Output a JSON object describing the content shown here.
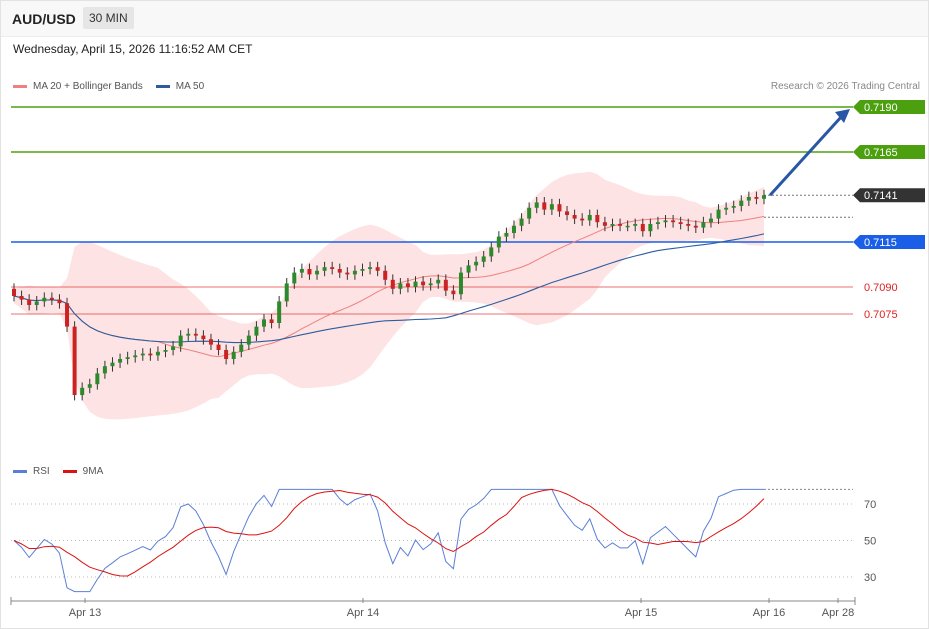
{
  "header": {
    "symbol": "AUD/USD",
    "timeframe": "30 MIN"
  },
  "datetime": "Wednesday, April 15, 2026 11:16:52 AM CET",
  "legend_price": {
    "items": [
      {
        "label": "MA 20 + Bollinger Bands",
        "color": "#f08080"
      },
      {
        "label": "MA 50",
        "color": "#2d5d9f"
      }
    ]
  },
  "credit": "Research © 2026 Trading Central",
  "legend_rsi": {
    "items": [
      {
        "label": "RSI",
        "color": "#5b7fd6"
      },
      {
        "label": "9MA",
        "color": "#dd1111"
      }
    ]
  },
  "levels": [
    {
      "value": "0.7190",
      "color": "#4ca010",
      "style": "box",
      "text_color": "#ffffff"
    },
    {
      "value": "0.7165",
      "color": "#4ca010",
      "style": "box",
      "text_color": "#ffffff"
    },
    {
      "value": "0.7141",
      "color": "#333333",
      "style": "box",
      "text_color": "#ffffff"
    },
    {
      "value": "0.7115",
      "color": "#1a5fe6",
      "style": "box",
      "text_color": "#ffffff"
    },
    {
      "value": "0.7090",
      "color": "#e04040",
      "style": "text",
      "text_color": "#dd2222"
    },
    {
      "value": "0.7075",
      "color": "#e04040",
      "style": "text",
      "text_color": "#dd2222"
    }
  ],
  "rsi_ticks": [
    "70",
    "50",
    "30"
  ],
  "x_ticks": [
    "Apr 13",
    "Apr 14",
    "Apr 15",
    "Apr 16",
    "Apr 28"
  ],
  "chart_data": {
    "type": "candlestick",
    "series": [
      {
        "name": "MA 20 + Bollinger Bands"
      },
      {
        "name": "MA 50"
      },
      {
        "name": "RSI"
      },
      {
        "name": "9MA"
      }
    ],
    "price_levels": [
      0.719,
      0.7165,
      0.7141,
      0.7115,
      0.709,
      0.7075
    ],
    "last_price": 0.7141,
    "projection": {
      "from": 0.7141,
      "to": 0.719
    },
    "close": [
      0.7085,
      0.7083,
      0.708,
      0.7082,
      0.7084,
      0.7083,
      0.7081,
      0.7068,
      0.703,
      0.7034,
      0.7036,
      0.7042,
      0.7046,
      0.7048,
      0.705,
      0.7051,
      0.7052,
      0.7053,
      0.7052,
      0.7054,
      0.7055,
      0.7057,
      0.7063,
      0.7064,
      0.7063,
      0.7061,
      0.7058,
      0.7055,
      0.705,
      0.7054,
      0.7058,
      0.7063,
      0.7068,
      0.7072,
      0.707,
      0.7082,
      0.7092,
      0.7098,
      0.71,
      0.7097,
      0.7099,
      0.7101,
      0.71,
      0.7098,
      0.7097,
      0.7099,
      0.71,
      0.7101,
      0.7099,
      0.7094,
      0.7089,
      0.7092,
      0.709,
      0.7093,
      0.7091,
      0.7092,
      0.7094,
      0.7088,
      0.7086,
      0.7098,
      0.7102,
      0.7104,
      0.7107,
      0.7112,
      0.7118,
      0.712,
      0.7124,
      0.7128,
      0.7134,
      0.7137,
      0.7133,
      0.7136,
      0.7132,
      0.713,
      0.7128,
      0.7127,
      0.713,
      0.7126,
      0.7124,
      0.7125,
      0.7124,
      0.7124,
      0.7125,
      0.7121,
      0.7125,
      0.7126,
      0.7127,
      0.7126,
      0.7125,
      0.7124,
      0.7123,
      0.7126,
      0.7128,
      0.7133,
      0.7134,
      0.7135,
      0.7138,
      0.714,
      0.7139,
      0.7141
    ],
    "rsi": {
      "ylim": [
        20,
        80
      ],
      "ticks": [
        70,
        50,
        30
      ]
    }
  }
}
